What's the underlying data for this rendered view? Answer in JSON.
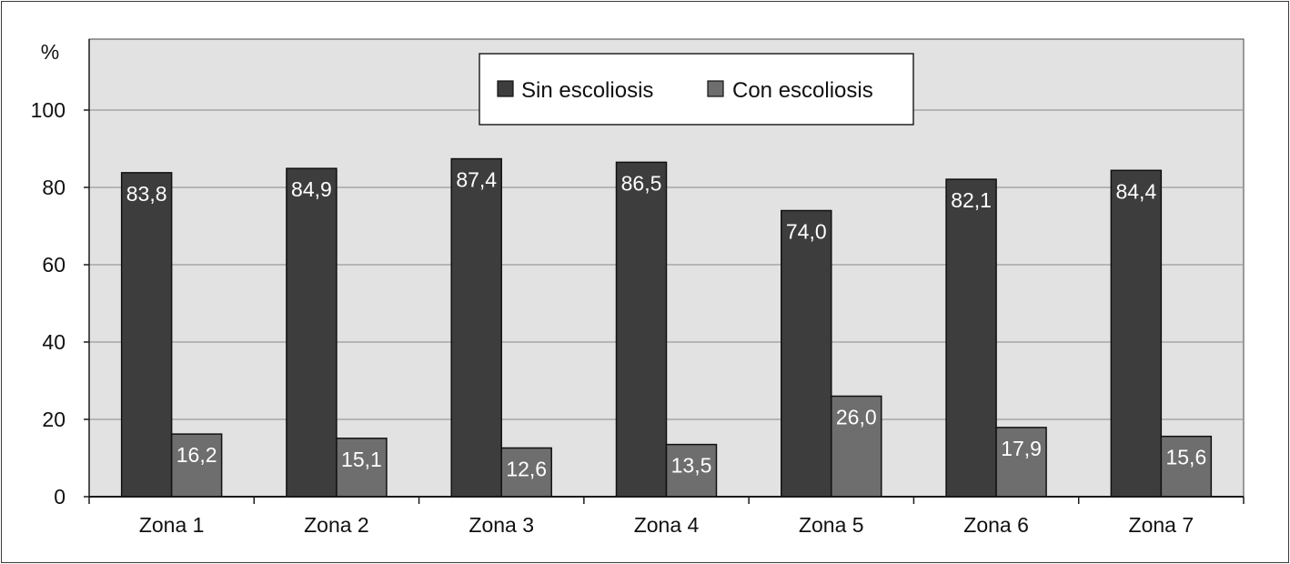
{
  "chart_data": {
    "type": "bar",
    "ylabel": "%",
    "ylim": [
      0,
      100
    ],
    "yticks": [
      0,
      20,
      40,
      60,
      80,
      100
    ],
    "grid": true,
    "legend_position": "top-center",
    "categories": [
      "Zona 1",
      "Zona 2",
      "Zona 3",
      "Zona 4",
      "Zona 5",
      "Zona 6",
      "Zona 7"
    ],
    "series": [
      {
        "name": "Sin escoliosis",
        "color": "#3d3d3d",
        "values": [
          83.8,
          84.9,
          87.4,
          86.5,
          74.0,
          82.1,
          84.4
        ],
        "labels": [
          "83,8",
          "84,9",
          "87,4",
          "86,5",
          "74,0",
          "82,1",
          "84,4"
        ]
      },
      {
        "name": "Con escoliosis",
        "color": "#6e6e6e",
        "values": [
          16.2,
          15.1,
          12.6,
          13.5,
          26.0,
          17.9,
          15.6
        ],
        "labels": [
          "16,2",
          "15,1",
          "12,6",
          "13,5",
          "26,0",
          "17,9",
          "15,6"
        ]
      }
    ],
    "colors": {
      "plot_background": "#e2e2e2",
      "gridline": "#9a9a9a",
      "axis": "#1a1a1a"
    }
  }
}
